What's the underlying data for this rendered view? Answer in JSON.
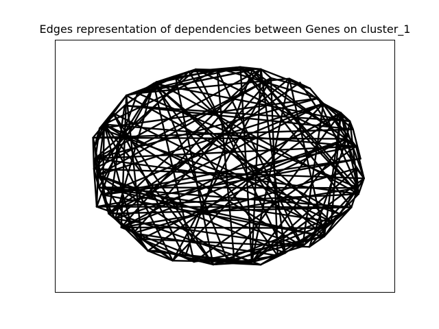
{
  "title": "Edges representation of dependencies between Genes on cluster_1",
  "chart_data": {
    "type": "network",
    "title": "Edges representation of dependencies between Genes on cluster_1",
    "xlabel": "",
    "ylabel": "",
    "ticks": "none",
    "edge_color": "#000000",
    "background": "#ffffff",
    "frame_color": "#000000",
    "layout": "circular",
    "node_count": 64,
    "edge_count": 230,
    "grid": false
  }
}
